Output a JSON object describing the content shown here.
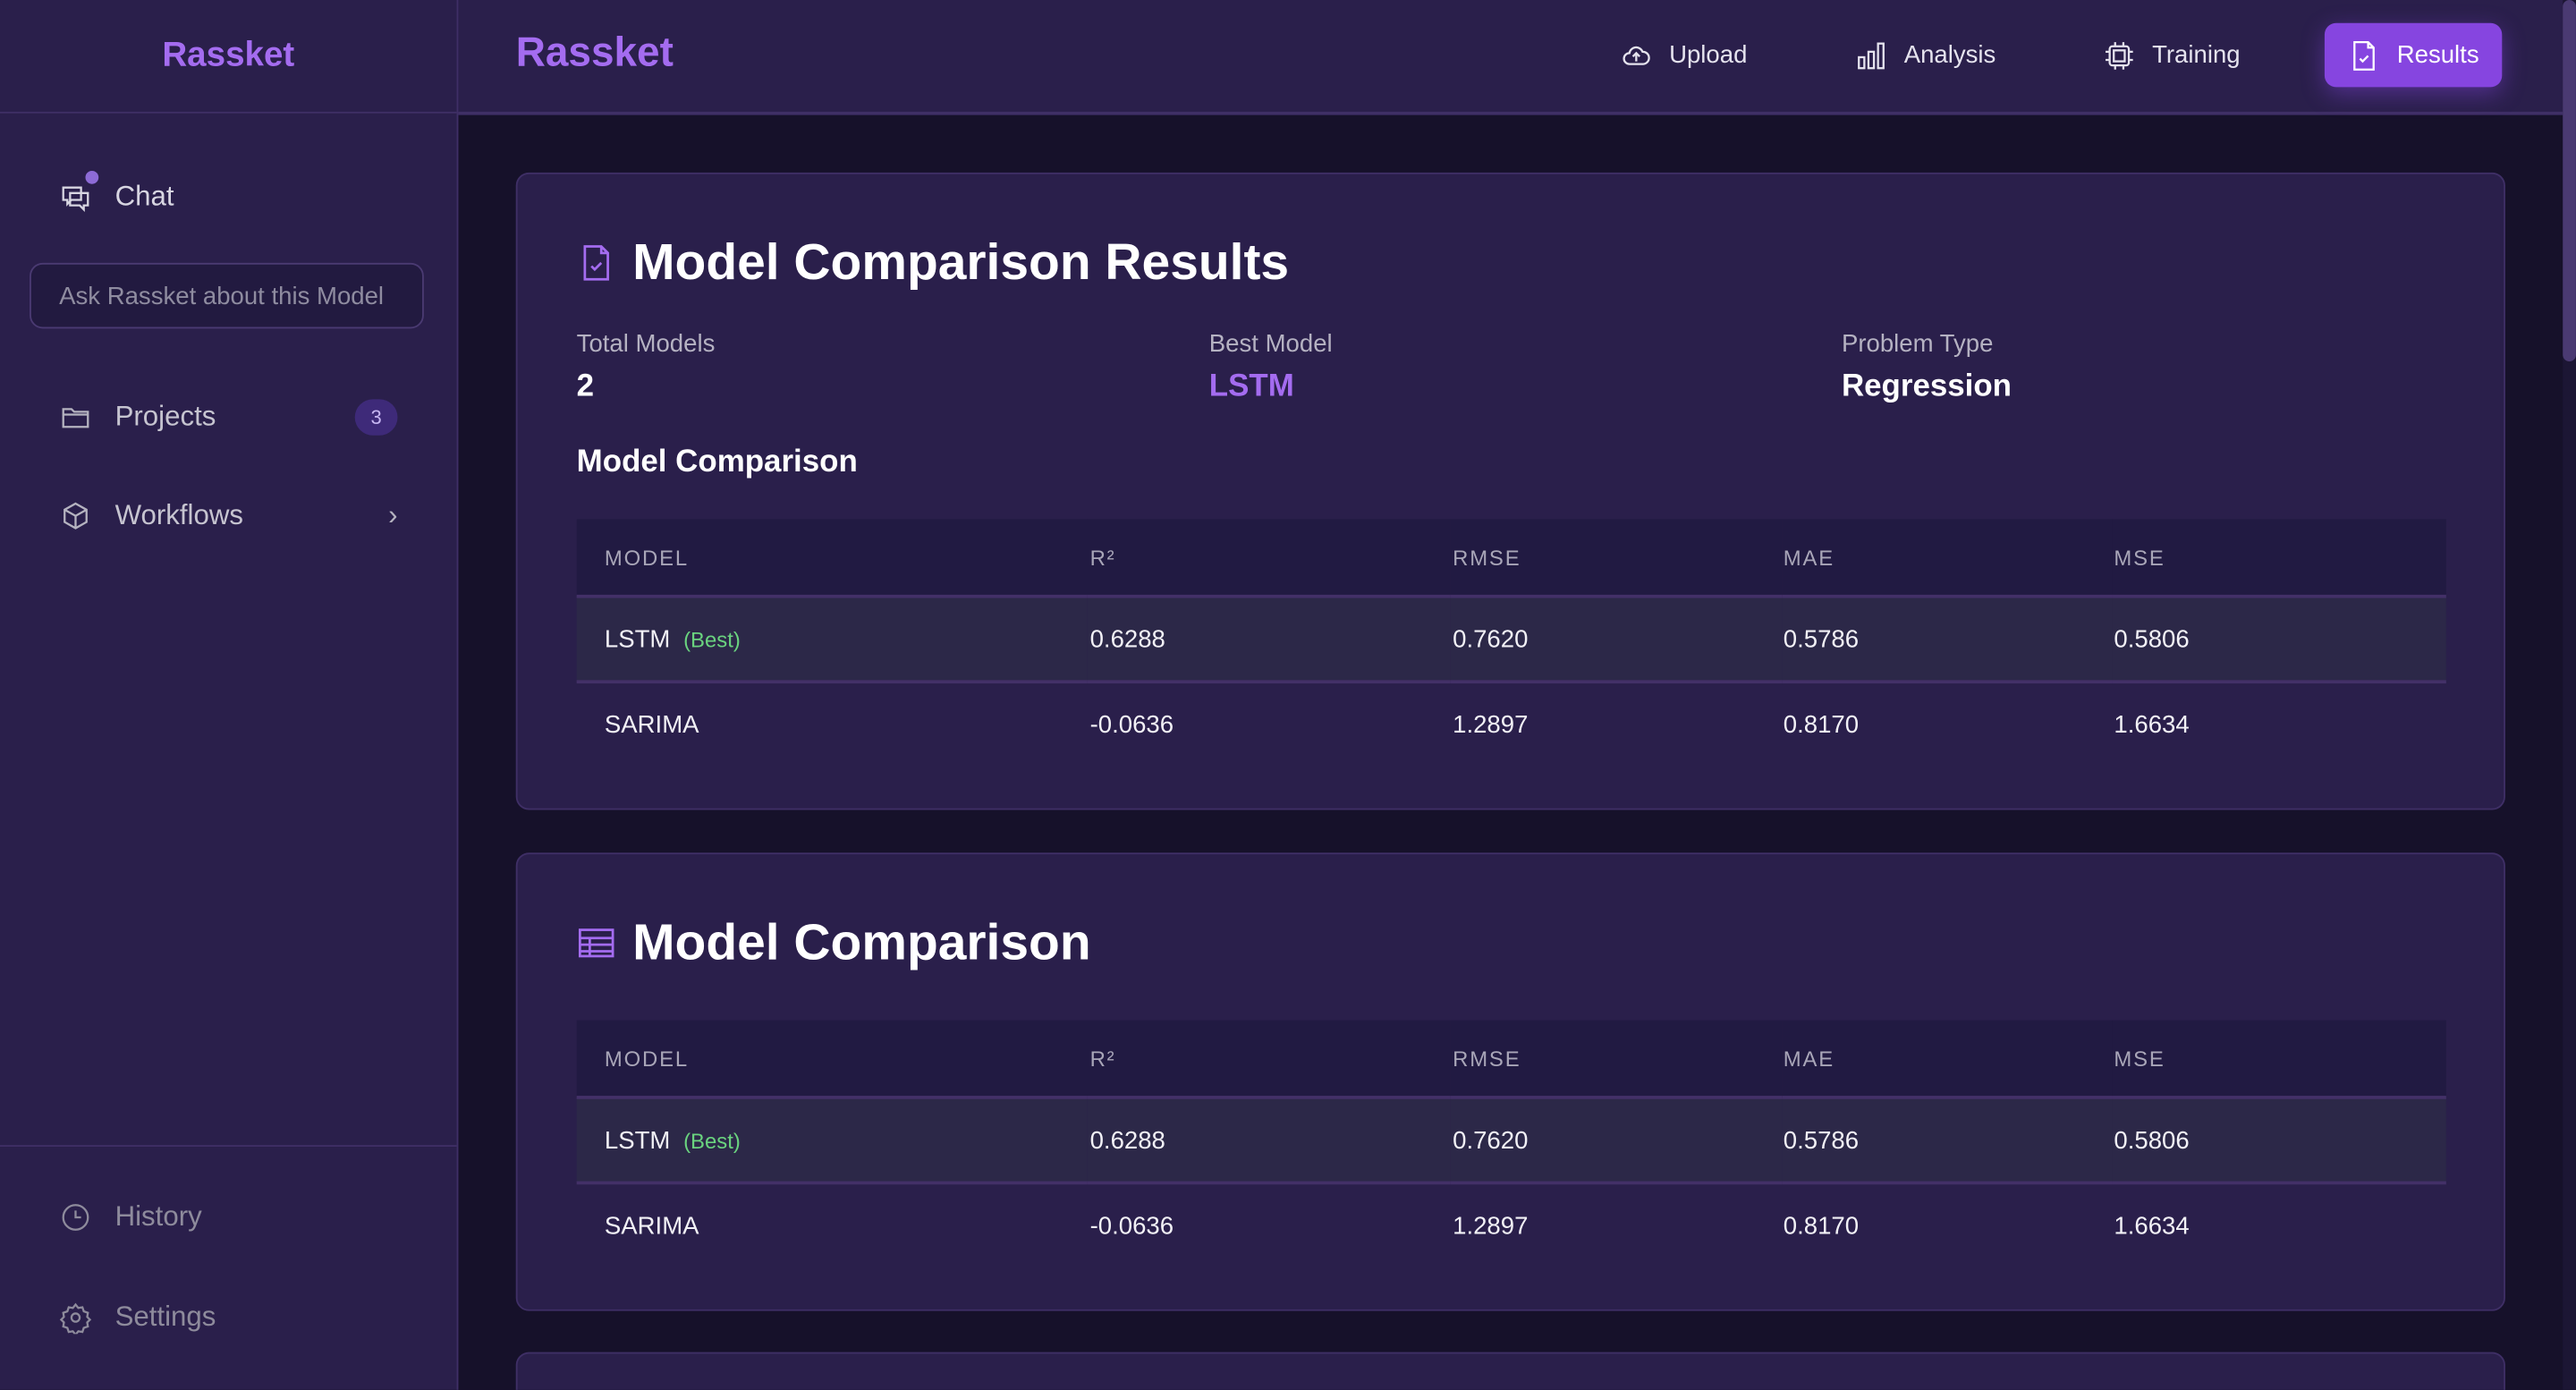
{
  "sidebar": {
    "brand": "Rassket",
    "chat": "Chat",
    "chat_placeholder": "Ask Rassket about this Model",
    "projects": "Projects",
    "projects_count": "3",
    "workflows": "Workflows",
    "history": "History",
    "settings": "Settings"
  },
  "header": {
    "brand": "Rassket",
    "nav": [
      {
        "label": "Upload",
        "icon": "cloud-upload-icon"
      },
      {
        "label": "Analysis",
        "icon": "bar-chart-icon"
      },
      {
        "label": "Training",
        "icon": "cpu-icon"
      },
      {
        "label": "Results",
        "icon": "file-check-icon",
        "active": true
      }
    ]
  },
  "results": {
    "title": "Model Comparison Results",
    "stats": [
      {
        "label": "Total Models",
        "value": "2"
      },
      {
        "label": "Best Model",
        "value": "LSTM"
      },
      {
        "label": "Problem Type",
        "value": "Regression"
      }
    ],
    "subtitle": "Model Comparison"
  },
  "comparison": {
    "title": "Model Comparison"
  },
  "table": {
    "headers": [
      "MODEL",
      "R²",
      "RMSE",
      "MAE",
      "MSE"
    ],
    "best_label": "(Best)",
    "rows": [
      {
        "model": "LSTM",
        "best": true,
        "r2": "0.6288",
        "rmse": "0.7620",
        "mae": "0.5786",
        "mse": "0.5806"
      },
      {
        "model": "SARIMA",
        "best": false,
        "r2": "-0.0636",
        "rmse": "1.2897",
        "mae": "0.8170",
        "mse": "1.6634"
      }
    ]
  },
  "colors": {
    "accent": "#8645e0",
    "brand": "#a46cf0",
    "best": "#6ad37f"
  }
}
